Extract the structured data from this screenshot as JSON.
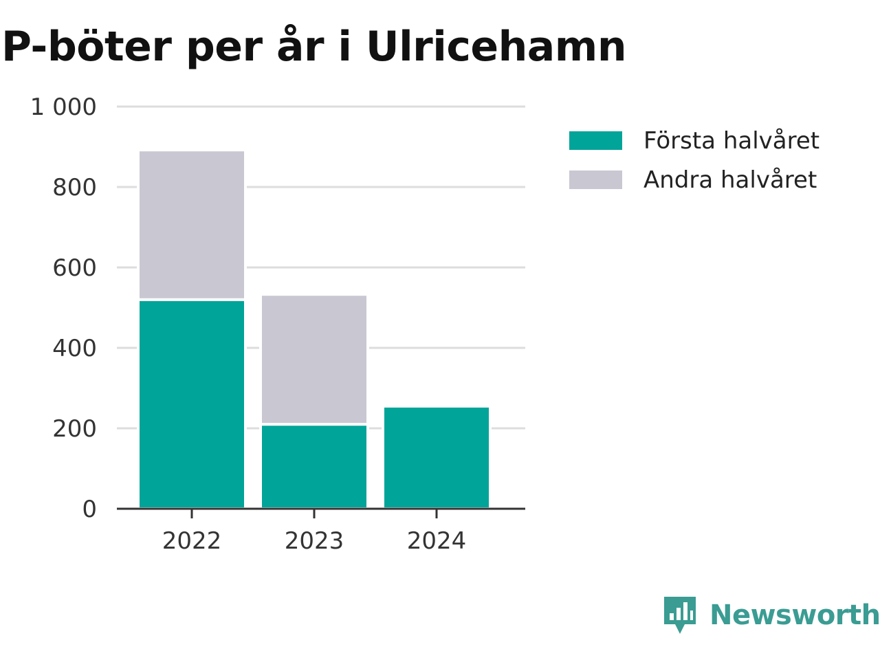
{
  "title": "P-böter per år i Ulricehamn",
  "brand": {
    "name": "Newsworthy",
    "icon": "newsworthy-logo-icon"
  },
  "colors": {
    "first_half": "#00a499",
    "second_half": "#c8c7d2",
    "grid": "#dddddd",
    "axis": "#333333",
    "brand": "#3a9c93"
  },
  "legend": [
    {
      "label": "Första halvåret",
      "color": "#00a499"
    },
    {
      "label": "Andra halvåret",
      "color": "#c8c7d2"
    }
  ],
  "chart_data": {
    "type": "bar",
    "stacked": true,
    "title": "P-böter per år i Ulricehamn",
    "xlabel": "",
    "ylabel": "",
    "categories": [
      "2022",
      "2023",
      "2024"
    ],
    "series": [
      {
        "name": "Första halvåret",
        "values": [
          520,
          210,
          255
        ]
      },
      {
        "name": "Andra halvåret",
        "values": [
          372,
          323,
          0
        ]
      }
    ],
    "ylim": [
      0,
      1000
    ],
    "yticks": [
      0,
      200,
      400,
      600,
      800,
      1000
    ],
    "ytick_labels": [
      "0",
      "200",
      "400",
      "600",
      "800",
      "1 000"
    ],
    "grid": true,
    "legend_position": "right"
  }
}
